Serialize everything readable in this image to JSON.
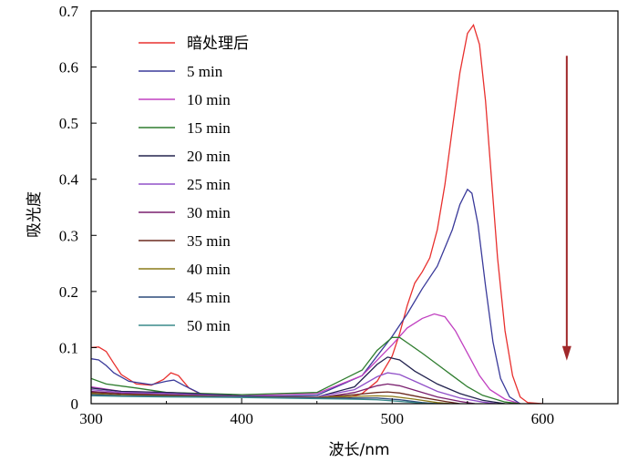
{
  "chart_data": {
    "type": "line",
    "xlabel": "波长/nm",
    "ylabel": "吸光度",
    "xlim": [
      300,
      650
    ],
    "ylim": [
      0,
      0.7
    ],
    "x_ticks": [
      "300",
      "400",
      "500",
      "600"
    ],
    "y_ticks": [
      "0",
      "0.1",
      "0.2",
      "0.3",
      "0.4",
      "0.5",
      "0.6",
      "0.7"
    ],
    "x_tick_values": [
      300,
      400,
      500,
      600
    ],
    "y_tick_values": [
      0,
      0.1,
      0.2,
      0.3,
      0.4,
      0.5,
      0.6,
      0.7
    ],
    "legend_position": "top-left",
    "arrow": {
      "x": 616,
      "y_from": 0.62,
      "y_to": 0.08,
      "color": "#a0282a"
    },
    "series": [
      {
        "name": "暗处理后",
        "color": "#e8302e",
        "points": [
          [
            300,
            0.1
          ],
          [
            305,
            0.101
          ],
          [
            310,
            0.093
          ],
          [
            315,
            0.072
          ],
          [
            320,
            0.052
          ],
          [
            330,
            0.035
          ],
          [
            340,
            0.033
          ],
          [
            348,
            0.043
          ],
          [
            353,
            0.055
          ],
          [
            358,
            0.05
          ],
          [
            365,
            0.028
          ],
          [
            375,
            0.014
          ],
          [
            400,
            0.012
          ],
          [
            430,
            0.013
          ],
          [
            450,
            0.011
          ],
          [
            470,
            0.01
          ],
          [
            480,
            0.018
          ],
          [
            490,
            0.04
          ],
          [
            500,
            0.085
          ],
          [
            505,
            0.125
          ],
          [
            510,
            0.175
          ],
          [
            515,
            0.215
          ],
          [
            520,
            0.235
          ],
          [
            525,
            0.26
          ],
          [
            530,
            0.31
          ],
          [
            535,
            0.39
          ],
          [
            540,
            0.49
          ],
          [
            545,
            0.59
          ],
          [
            550,
            0.66
          ],
          [
            554,
            0.675
          ],
          [
            558,
            0.64
          ],
          [
            562,
            0.54
          ],
          [
            566,
            0.4
          ],
          [
            570,
            0.26
          ],
          [
            575,
            0.13
          ],
          [
            580,
            0.05
          ],
          [
            585,
            0.012
          ],
          [
            590,
            0.002
          ],
          [
            600,
            0.0
          ]
        ]
      },
      {
        "name": "5 min",
        "color": "#3a3a9a",
        "points": [
          [
            300,
            0.08
          ],
          [
            305,
            0.078
          ],
          [
            310,
            0.068
          ],
          [
            315,
            0.055
          ],
          [
            325,
            0.04
          ],
          [
            340,
            0.034
          ],
          [
            350,
            0.04
          ],
          [
            355,
            0.042
          ],
          [
            362,
            0.032
          ],
          [
            375,
            0.015
          ],
          [
            400,
            0.012
          ],
          [
            450,
            0.015
          ],
          [
            480,
            0.05
          ],
          [
            500,
            0.12
          ],
          [
            510,
            0.16
          ],
          [
            520,
            0.205
          ],
          [
            530,
            0.245
          ],
          [
            540,
            0.31
          ],
          [
            545,
            0.355
          ],
          [
            550,
            0.382
          ],
          [
            553,
            0.375
          ],
          [
            557,
            0.32
          ],
          [
            562,
            0.21
          ],
          [
            567,
            0.11
          ],
          [
            572,
            0.045
          ],
          [
            578,
            0.012
          ],
          [
            585,
            0.0
          ]
        ]
      },
      {
        "name": "10 min",
        "color": "#c040c0",
        "points": [
          [
            300,
            0.03
          ],
          [
            320,
            0.022
          ],
          [
            350,
            0.02
          ],
          [
            400,
            0.014
          ],
          [
            450,
            0.018
          ],
          [
            480,
            0.05
          ],
          [
            500,
            0.105
          ],
          [
            510,
            0.135
          ],
          [
            520,
            0.152
          ],
          [
            528,
            0.16
          ],
          [
            535,
            0.155
          ],
          [
            542,
            0.13
          ],
          [
            550,
            0.09
          ],
          [
            558,
            0.05
          ],
          [
            565,
            0.025
          ],
          [
            575,
            0.008
          ],
          [
            585,
            0.0
          ]
        ]
      },
      {
        "name": "15 min",
        "color": "#2f7d2f",
        "points": [
          [
            300,
            0.045
          ],
          [
            310,
            0.035
          ],
          [
            330,
            0.028
          ],
          [
            350,
            0.02
          ],
          [
            400,
            0.016
          ],
          [
            450,
            0.02
          ],
          [
            480,
            0.06
          ],
          [
            490,
            0.095
          ],
          [
            500,
            0.118
          ],
          [
            505,
            0.118
          ],
          [
            512,
            0.105
          ],
          [
            520,
            0.09
          ],
          [
            530,
            0.07
          ],
          [
            540,
            0.05
          ],
          [
            550,
            0.03
          ],
          [
            560,
            0.015
          ],
          [
            575,
            0.003
          ],
          [
            585,
            0.0
          ]
        ]
      },
      {
        "name": "20 min",
        "color": "#23234f",
        "points": [
          [
            300,
            0.028
          ],
          [
            320,
            0.022
          ],
          [
            350,
            0.02
          ],
          [
            400,
            0.014
          ],
          [
            450,
            0.012
          ],
          [
            475,
            0.03
          ],
          [
            490,
            0.07
          ],
          [
            497,
            0.083
          ],
          [
            505,
            0.078
          ],
          [
            515,
            0.058
          ],
          [
            530,
            0.035
          ],
          [
            545,
            0.018
          ],
          [
            560,
            0.006
          ],
          [
            575,
            0.0
          ]
        ]
      },
      {
        "name": "25 min",
        "color": "#9050c8",
        "points": [
          [
            300,
            0.025
          ],
          [
            320,
            0.02
          ],
          [
            350,
            0.018
          ],
          [
            400,
            0.013
          ],
          [
            450,
            0.012
          ],
          [
            475,
            0.025
          ],
          [
            490,
            0.048
          ],
          [
            497,
            0.055
          ],
          [
            505,
            0.052
          ],
          [
            515,
            0.04
          ],
          [
            530,
            0.022
          ],
          [
            545,
            0.01
          ],
          [
            560,
            0.003
          ],
          [
            570,
            0.0
          ]
        ]
      },
      {
        "name": "30 min",
        "color": "#7a1f6e",
        "points": [
          [
            300,
            0.022
          ],
          [
            320,
            0.018
          ],
          [
            350,
            0.016
          ],
          [
            400,
            0.012
          ],
          [
            450,
            0.01
          ],
          [
            475,
            0.02
          ],
          [
            490,
            0.032
          ],
          [
            497,
            0.035
          ],
          [
            505,
            0.032
          ],
          [
            515,
            0.024
          ],
          [
            530,
            0.012
          ],
          [
            545,
            0.004
          ],
          [
            555,
            0.0
          ]
        ]
      },
      {
        "name": "35 min",
        "color": "#6b2a1f",
        "points": [
          [
            300,
            0.02
          ],
          [
            320,
            0.017
          ],
          [
            350,
            0.015
          ],
          [
            400,
            0.012
          ],
          [
            450,
            0.011
          ],
          [
            475,
            0.016
          ],
          [
            490,
            0.02
          ],
          [
            497,
            0.021
          ],
          [
            505,
            0.019
          ],
          [
            520,
            0.011
          ],
          [
            535,
            0.004
          ],
          [
            545,
            0.0
          ]
        ]
      },
      {
        "name": "40 min",
        "color": "#8a7a18",
        "points": [
          [
            300,
            0.018
          ],
          [
            320,
            0.015
          ],
          [
            350,
            0.014
          ],
          [
            400,
            0.012
          ],
          [
            450,
            0.011
          ],
          [
            475,
            0.013
          ],
          [
            490,
            0.014
          ],
          [
            500,
            0.013
          ],
          [
            515,
            0.008
          ],
          [
            530,
            0.002
          ],
          [
            540,
            0.0
          ]
        ]
      },
      {
        "name": "45 min",
        "color": "#2c4a7a",
        "points": [
          [
            300,
            0.016
          ],
          [
            320,
            0.014
          ],
          [
            350,
            0.013
          ],
          [
            400,
            0.012
          ],
          [
            450,
            0.01
          ],
          [
            475,
            0.01
          ],
          [
            490,
            0.01
          ],
          [
            505,
            0.007
          ],
          [
            520,
            0.002
          ],
          [
            530,
            0.0
          ]
        ]
      },
      {
        "name": "50 min",
        "color": "#3a8a8a",
        "points": [
          [
            300,
            0.014
          ],
          [
            320,
            0.013
          ],
          [
            350,
            0.012
          ],
          [
            400,
            0.011
          ],
          [
            450,
            0.009
          ],
          [
            475,
            0.008
          ],
          [
            490,
            0.007
          ],
          [
            505,
            0.004
          ],
          [
            520,
            0.001
          ],
          [
            530,
            0.0
          ]
        ]
      }
    ]
  }
}
